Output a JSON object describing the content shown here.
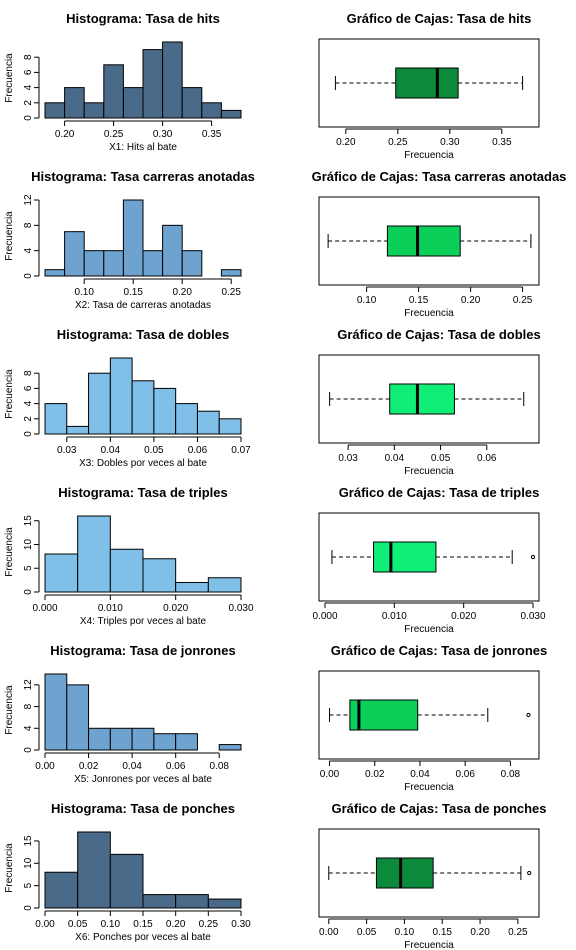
{
  "chart_data": [
    {
      "type": "histogram",
      "title": "Histograma: Tasa de hits",
      "xlabel": "X1: Hits al bate",
      "ylabel": "Frecuencia",
      "color": "#4a6a8a",
      "bin_edges": [
        0.18,
        0.2,
        0.22,
        0.24,
        0.26,
        0.28,
        0.3,
        0.32,
        0.34,
        0.36,
        0.38
      ],
      "values": [
        2,
        4,
        2,
        7,
        4,
        9,
        10,
        4,
        2,
        1
      ],
      "xlim": [
        0.18,
        0.38
      ],
      "ylim": [
        0,
        10
      ],
      "xticks": [
        "0.20",
        "0.25",
        "0.30",
        "0.35"
      ],
      "xtick_values": [
        0.2,
        0.25,
        0.3,
        0.35
      ],
      "yticks": [
        "0",
        "2",
        "4",
        "6",
        "8"
      ],
      "ytick_values": [
        0,
        2,
        4,
        6,
        8
      ]
    },
    {
      "type": "boxplot",
      "title": "Gráfico de Cajas: Tasa de hits",
      "xlabel": "Frecuencia",
      "color": "#0b8a3c",
      "whisker_low": 0.19,
      "q1": 0.248,
      "median": 0.288,
      "q3": 0.308,
      "whisker_high": 0.37,
      "outliers": [],
      "xlim": [
        0.18,
        0.38
      ],
      "xticks": [
        "0.20",
        "0.25",
        "0.30",
        "0.35"
      ],
      "xtick_values": [
        0.2,
        0.25,
        0.3,
        0.35
      ]
    },
    {
      "type": "histogram",
      "title": "Histograma: Tasa carreras anotadas",
      "xlabel": "X2: Tasa de carreras anotadas",
      "ylabel": "Frecuencia",
      "color": "#6fa3cf",
      "bin_edges": [
        0.06,
        0.08,
        0.1,
        0.12,
        0.14,
        0.16,
        0.18,
        0.2,
        0.22,
        0.24,
        0.26
      ],
      "values": [
        1,
        7,
        4,
        4,
        12,
        4,
        8,
        4,
        0,
        1
      ],
      "xlim": [
        0.06,
        0.26
      ],
      "ylim": [
        0,
        12
      ],
      "xticks": [
        "0.10",
        "0.15",
        "0.20",
        "0.25"
      ],
      "xtick_values": [
        0.1,
        0.15,
        0.2,
        0.25
      ],
      "yticks": [
        "0",
        "4",
        "8",
        "12"
      ],
      "ytick_values": [
        0,
        4,
        8,
        12
      ]
    },
    {
      "type": "boxplot",
      "title": "Gráfico de Cajas: Tasa carreras anotadas",
      "xlabel": "Frecuencia",
      "color": "#0ccf5a",
      "whisker_low": 0.063,
      "q1": 0.12,
      "median": 0.149,
      "q3": 0.19,
      "whisker_high": 0.258,
      "outliers": [],
      "xlim": [
        0.06,
        0.26
      ],
      "xticks": [
        "0.10",
        "0.15",
        "0.20",
        "0.25"
      ],
      "xtick_values": [
        0.1,
        0.15,
        0.2,
        0.25
      ]
    },
    {
      "type": "histogram",
      "title": "Histograma: Tasa de dobles",
      "xlabel": "X3: Dobles por veces al bate",
      "ylabel": "Frecuencia",
      "color": "#7fbfe8",
      "bin_edges": [
        0.025,
        0.03,
        0.035,
        0.04,
        0.045,
        0.05,
        0.055,
        0.06,
        0.065,
        0.07
      ],
      "values": [
        4,
        1,
        8,
        10,
        7,
        6,
        4,
        3,
        2
      ],
      "xlim": [
        0.025,
        0.07
      ],
      "ylim": [
        0,
        10
      ],
      "xticks": [
        "0.03",
        "0.04",
        "0.05",
        "0.06",
        "0.07"
      ],
      "xtick_values": [
        0.03,
        0.04,
        0.05,
        0.06,
        0.07
      ],
      "yticks": [
        "0",
        "2",
        "4",
        "6",
        "8"
      ],
      "ytick_values": [
        0,
        2,
        4,
        6,
        8
      ]
    },
    {
      "type": "boxplot",
      "title": "Gráfico de Cajas: Tasa de dobles",
      "xlabel": "Frecuencia",
      "color": "#11ee77",
      "whisker_low": 0.026,
      "q1": 0.039,
      "median": 0.045,
      "q3": 0.053,
      "whisker_high": 0.068,
      "outliers": [],
      "xlim": [
        0.025,
        0.07
      ],
      "xticks": [
        "0.03",
        "0.04",
        "0.05",
        "0.06"
      ],
      "xtick_values": [
        0.03,
        0.04,
        0.05,
        0.06
      ]
    },
    {
      "type": "histogram",
      "title": "Histograma: Tasa de triples",
      "xlabel": "X4: Triples por veces al bate",
      "ylabel": "Frecuencia",
      "color": "#7fbfe8",
      "bin_edges": [
        0.0,
        0.005,
        0.01,
        0.015,
        0.02,
        0.025,
        0.03
      ],
      "values": [
        8,
        16,
        9,
        7,
        2,
        3
      ],
      "xlim": [
        0,
        0.03
      ],
      "ylim": [
        0,
        16
      ],
      "xticks": [
        "0.000",
        "0.010",
        "0.020",
        "0.030"
      ],
      "xtick_values": [
        0.0,
        0.01,
        0.02,
        0.03
      ],
      "yticks": [
        "0",
        "5",
        "10",
        "15"
      ],
      "ytick_values": [
        0,
        5,
        10,
        15
      ]
    },
    {
      "type": "boxplot",
      "title": "Gráfico de Cajas: Tasa de triples",
      "xlabel": "Frecuencia",
      "color": "#11ee77",
      "whisker_low": 0.001,
      "q1": 0.007,
      "median": 0.0095,
      "q3": 0.016,
      "whisker_high": 0.027,
      "outliers": [
        0.03
      ],
      "xlim": [
        0,
        0.03
      ],
      "xticks": [
        "0.000",
        "0.010",
        "0.020",
        "0.030"
      ],
      "xtick_values": [
        0.0,
        0.01,
        0.02,
        0.03
      ]
    },
    {
      "type": "histogram",
      "title": "Histograma: Tasa de jonrones",
      "xlabel": "X5: Jonrones por veces al bate",
      "ylabel": "Frecuencia",
      "color": "#6fa3cf",
      "bin_edges": [
        0.0,
        0.01,
        0.02,
        0.03,
        0.04,
        0.05,
        0.06,
        0.07,
        0.08,
        0.09
      ],
      "values": [
        14,
        12,
        4,
        4,
        4,
        3,
        3,
        0,
        1
      ],
      "xlim": [
        0,
        0.09
      ],
      "ylim": [
        0,
        14
      ],
      "xticks": [
        "0.00",
        "0.02",
        "0.04",
        "0.06",
        "0.08"
      ],
      "xtick_values": [
        0.0,
        0.02,
        0.04,
        0.06,
        0.08
      ],
      "yticks": [
        "0",
        "4",
        "8",
        "12"
      ],
      "ytick_values": [
        0,
        4,
        8,
        12
      ]
    },
    {
      "type": "boxplot",
      "title": "Gráfico de Cajas: Tasa de jonrones",
      "xlabel": "Frecuencia",
      "color": "#0ccf5a",
      "whisker_low": 0.0,
      "q1": 0.009,
      "median": 0.013,
      "q3": 0.039,
      "whisker_high": 0.07,
      "outliers": [
        0.088
      ],
      "xlim": [
        -0.002,
        0.09
      ],
      "xticks": [
        "0.00",
        "0.02",
        "0.04",
        "0.06",
        "0.08"
      ],
      "xtick_values": [
        0.0,
        0.02,
        0.04,
        0.06,
        0.08
      ]
    },
    {
      "type": "histogram",
      "title": "Histograma: Tasa de ponches",
      "xlabel": "X6: Ponches por veces al bate",
      "ylabel": "Frecuencia",
      "color": "#4a6a8a",
      "bin_edges": [
        0.0,
        0.05,
        0.1,
        0.15,
        0.2,
        0.25,
        0.3
      ],
      "values": [
        8,
        17,
        12,
        3,
        3,
        2
      ],
      "xlim": [
        0,
        0.3
      ],
      "ylim": [
        0,
        17
      ],
      "xticks": [
        "0.00",
        "0.05",
        "0.10",
        "0.15",
        "0.20",
        "0.25",
        "0.30"
      ],
      "xtick_values": [
        0.0,
        0.05,
        0.1,
        0.15,
        0.2,
        0.25,
        0.3
      ],
      "yticks": [
        "0",
        "5",
        "10",
        "15"
      ],
      "ytick_values": [
        0,
        5,
        10,
        15
      ]
    },
    {
      "type": "boxplot",
      "title": "Gráfico de Cajas: Tasa de ponches",
      "xlabel": "Frecuencia",
      "color": "#0b8a3c",
      "whisker_low": 0.0,
      "q1": 0.063,
      "median": 0.095,
      "q3": 0.138,
      "whisker_high": 0.254,
      "outliers": [
        0.265
      ],
      "xlim": [
        -0.005,
        0.27
      ],
      "xticks": [
        "0.00",
        "0.05",
        "0.10",
        "0.15",
        "0.20",
        "0.25"
      ],
      "xtick_values": [
        0.0,
        0.05,
        0.1,
        0.15,
        0.2,
        0.25
      ]
    }
  ]
}
